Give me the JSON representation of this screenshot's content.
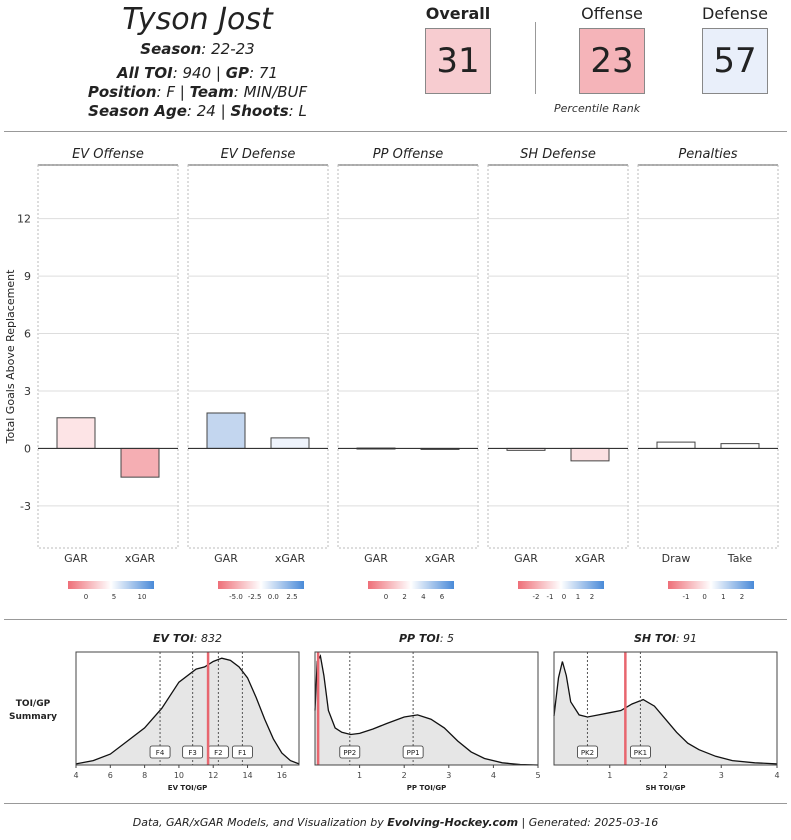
{
  "header": {
    "player_name": "Tyson Jost",
    "season_label": "Season",
    "season": "22-23",
    "toi_label": "All TOI",
    "toi": "940",
    "gp_label": "GP",
    "gp": "71",
    "position_label": "Position",
    "position": "F",
    "team_label": "Team",
    "team": "MIN/BUF",
    "age_label": "Season Age",
    "age": "24",
    "shoots_label": "Shoots",
    "shoots": "L"
  },
  "ratings": {
    "overall": {
      "label": "Overall",
      "value": "31",
      "color": "#f7ccd0"
    },
    "offense": {
      "label": "Offense",
      "value": "23",
      "color": "#f5b4b9"
    },
    "defense": {
      "label": "Defense",
      "value": "57",
      "color": "#e9effa"
    },
    "percentile_note": "Percentile Rank"
  },
  "chart_data": [
    {
      "type": "bar",
      "ylabel": "Total Goals Above Replacement",
      "yticks": [
        12,
        9,
        6,
        3,
        0,
        -3
      ],
      "ylim": [
        -5.2,
        14.8
      ],
      "grid": true,
      "panels": [
        {
          "title": "EV Offense",
          "categories": [
            "GAR",
            "xGAR"
          ],
          "values": [
            1.6,
            -1.5
          ],
          "colors": [
            "#fde4e6",
            "#f5aeb3"
          ],
          "legend_ticks": [
            "0",
            "5",
            "10"
          ]
        },
        {
          "title": "EV Defense",
          "categories": [
            "GAR",
            "xGAR"
          ],
          "values": [
            1.85,
            0.55
          ],
          "colors": [
            "#c3d6ef",
            "#eef3fb"
          ],
          "legend_ticks": [
            "-5.0",
            "-2.5",
            "0.0",
            "2.5"
          ]
        },
        {
          "title": "PP Offense",
          "categories": [
            "GAR",
            "xGAR"
          ],
          "values": [
            0.02,
            -0.02
          ],
          "colors": [
            "#ffffff",
            "#ffffff"
          ],
          "legend_ticks": [
            "0",
            "2",
            "4",
            "6"
          ]
        },
        {
          "title": "SH Defense",
          "categories": [
            "GAR",
            "xGAR"
          ],
          "values": [
            -0.1,
            -0.65
          ],
          "colors": [
            "#fdf2f3",
            "#fbe0e2"
          ],
          "legend_ticks": [
            "-2",
            "-1",
            "0",
            "1",
            "2"
          ]
        },
        {
          "title": "Penalties",
          "categories": [
            "Draw",
            "Take"
          ],
          "values": [
            0.33,
            0.25
          ],
          "colors": [
            "#ffffff",
            "#ffffff"
          ],
          "legend_ticks": [
            "-1",
            "0",
            "1",
            "2"
          ]
        }
      ]
    },
    {
      "type": "area",
      "ylabel": "TOI/GP Summary",
      "panels": [
        {
          "title_label": "EV TOI",
          "title_value": "832",
          "xlabel": "EV TOI/GP",
          "xlim": [
            4,
            17
          ],
          "xticks": [
            4,
            6,
            8,
            10,
            12,
            14,
            16
          ],
          "player_value": 11.7,
          "markers": [
            {
              "label": "F4",
              "x": 8.9
            },
            {
              "label": "F3",
              "x": 10.8
            },
            {
              "label": "F2",
              "x": 12.3
            },
            {
              "label": "F1",
              "x": 13.7
            }
          ],
          "density": [
            [
              4.0,
              0.01
            ],
            [
              5.0,
              0.04
            ],
            [
              6.0,
              0.1
            ],
            [
              7.0,
              0.22
            ],
            [
              8.0,
              0.34
            ],
            [
              9.0,
              0.52
            ],
            [
              10.0,
              0.76
            ],
            [
              11.0,
              0.88
            ],
            [
              11.5,
              0.9
            ],
            [
              12.0,
              0.95
            ],
            [
              12.5,
              0.98
            ],
            [
              13.0,
              0.96
            ],
            [
              13.5,
              0.9
            ],
            [
              14.0,
              0.8
            ],
            [
              14.5,
              0.62
            ],
            [
              15.0,
              0.42
            ],
            [
              15.5,
              0.24
            ],
            [
              16.0,
              0.11
            ],
            [
              16.5,
              0.04
            ],
            [
              17.0,
              0.01
            ]
          ]
        },
        {
          "title_label": "PP TOI",
          "title_value": "5",
          "xlabel": "PP TOI/GP",
          "xlim": [
            0,
            5
          ],
          "xticks": [
            1,
            2,
            3,
            4,
            5
          ],
          "player_value": 0.07,
          "markers": [
            {
              "label": "PP2",
              "x": 0.78
            },
            {
              "label": "PP1",
              "x": 2.2
            }
          ],
          "density": [
            [
              0.0,
              0.5
            ],
            [
              0.05,
              0.95
            ],
            [
              0.12,
              1.0
            ],
            [
              0.2,
              0.82
            ],
            [
              0.3,
              0.5
            ],
            [
              0.45,
              0.34
            ],
            [
              0.6,
              0.3
            ],
            [
              0.8,
              0.28
            ],
            [
              1.0,
              0.29
            ],
            [
              1.3,
              0.33
            ],
            [
              1.6,
              0.38
            ],
            [
              2.0,
              0.44
            ],
            [
              2.3,
              0.46
            ],
            [
              2.6,
              0.42
            ],
            [
              2.9,
              0.34
            ],
            [
              3.2,
              0.22
            ],
            [
              3.5,
              0.12
            ],
            [
              3.8,
              0.06
            ],
            [
              4.2,
              0.02
            ],
            [
              4.6,
              0.005
            ],
            [
              5.0,
              0.0
            ]
          ]
        },
        {
          "title_label": "SH TOI",
          "title_value": "91",
          "xlabel": "SH TOI/GP",
          "xlim": [
            0,
            4
          ],
          "xticks": [
            1,
            2,
            3,
            4
          ],
          "player_value": 1.28,
          "markers": [
            {
              "label": "PK2",
              "x": 0.6
            },
            {
              "label": "PK1",
              "x": 1.55
            }
          ],
          "density": [
            [
              0.0,
              0.45
            ],
            [
              0.08,
              0.8
            ],
            [
              0.15,
              0.95
            ],
            [
              0.22,
              0.82
            ],
            [
              0.3,
              0.58
            ],
            [
              0.45,
              0.46
            ],
            [
              0.6,
              0.44
            ],
            [
              0.8,
              0.46
            ],
            [
              1.0,
              0.48
            ],
            [
              1.2,
              0.5
            ],
            [
              1.4,
              0.56
            ],
            [
              1.6,
              0.6
            ],
            [
              1.8,
              0.54
            ],
            [
              2.0,
              0.42
            ],
            [
              2.2,
              0.3
            ],
            [
              2.4,
              0.2
            ],
            [
              2.6,
              0.14
            ],
            [
              2.9,
              0.08
            ],
            [
              3.2,
              0.04
            ],
            [
              3.6,
              0.02
            ],
            [
              4.0,
              0.01
            ]
          ]
        }
      ]
    }
  ],
  "footer": {
    "prefix": "Data, GAR/xGAR Models, and Visualization by ",
    "brand": "Evolving-Hockey.com",
    "suffix": " | Generated: 2025-03-16"
  }
}
